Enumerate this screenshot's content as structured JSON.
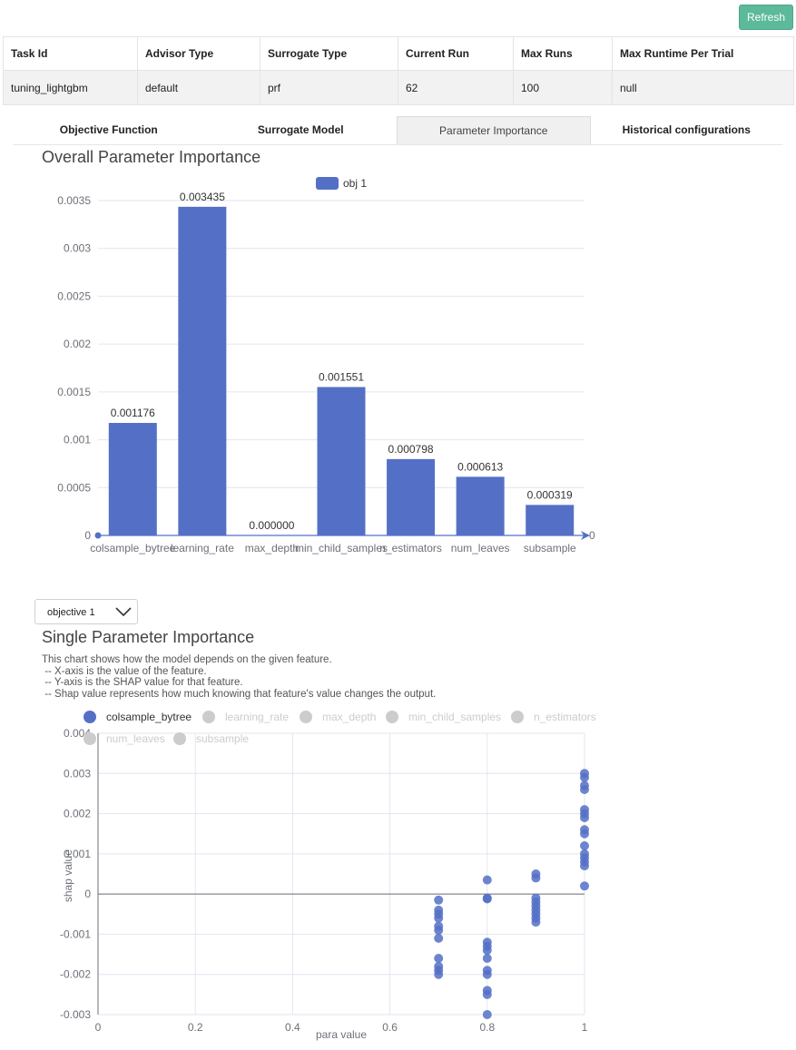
{
  "refresh_label": "Refresh",
  "info_table": {
    "headers": [
      "Task Id",
      "Advisor Type",
      "Surrogate Type",
      "Current Run",
      "Max Runs",
      "Max Runtime Per Trial"
    ],
    "row": [
      "tuning_lightgbm",
      "default",
      "prf",
      "62",
      "100",
      "null"
    ]
  },
  "tabs": [
    {
      "label": "Objective Function",
      "active": false
    },
    {
      "label": "Surrogate Model",
      "active": false
    },
    {
      "label": "Parameter Importance",
      "active": true
    },
    {
      "label": "Historical configurations",
      "active": false
    }
  ],
  "overall": {
    "title": "Overall Parameter Importance"
  },
  "objective_select": {
    "value": "objective 1"
  },
  "single": {
    "title": "Single Parameter Importance",
    "description": [
      "This chart shows how the model depends on the given feature.",
      " -- X-axis is the value of the feature.",
      " -- Y-axis is the SHAP value for that feature.",
      " -- Shap value represents how much knowing that feature's value changes the output."
    ]
  },
  "colors": {
    "series": "#5470c6",
    "inactive_legend": "#cccccc",
    "refresh": "#5cb99a"
  },
  "chart_data": [
    {
      "type": "bar",
      "title": "Overall Parameter Importance",
      "categories": [
        "colsample_bytree",
        "learning_rate",
        "max_depth",
        "min_child_samples",
        "n_estimators",
        "num_leaves",
        "subsample"
      ],
      "series": [
        {
          "name": "obj 1",
          "values": [
            0.001176,
            0.003435,
            0.0,
            0.001551,
            0.000798,
            0.000613,
            0.000319
          ]
        }
      ],
      "data_labels": [
        "0.001176",
        "0.003435",
        "0.000000",
        "0.001551",
        "0.000798",
        "0.000613",
        "0.000319"
      ],
      "y_ticks": [
        "0",
        "0.0005",
        "0.001",
        "0.0015",
        "0.002",
        "0.0025",
        "0.003",
        "0.0035"
      ],
      "y_right_label": "0",
      "ylim": [
        0,
        0.0035
      ],
      "legend": "top-center",
      "grid": true
    },
    {
      "type": "scatter",
      "title": "Single Parameter Importance",
      "xlabel": "para value",
      "ylabel": "shap value",
      "x_ticks": [
        "0",
        "0.2",
        "0.4",
        "0.6",
        "0.8",
        "1"
      ],
      "y_ticks": [
        "-0.003",
        "-0.002",
        "-0.001",
        "0",
        "0.001",
        "0.002",
        "0.003",
        "0.004"
      ],
      "xlim": [
        0,
        1
      ],
      "ylim": [
        -0.003,
        0.004
      ],
      "legend_items": [
        {
          "name": "colsample_bytree",
          "active": true
        },
        {
          "name": "learning_rate",
          "active": false
        },
        {
          "name": "max_depth",
          "active": false
        },
        {
          "name": "min_child_samples",
          "active": false
        },
        {
          "name": "n_estimators",
          "active": false
        },
        {
          "name": "num_leaves",
          "active": false
        },
        {
          "name": "subsample",
          "active": false
        }
      ],
      "grid": true,
      "series": [
        {
          "name": "colsample_bytree",
          "points": [
            [
              0.7,
              -0.00015
            ],
            [
              0.7,
              -0.0004
            ],
            [
              0.7,
              -0.0005
            ],
            [
              0.7,
              -0.0006
            ],
            [
              0.7,
              -0.0008
            ],
            [
              0.7,
              -0.0009
            ],
            [
              0.7,
              -0.0011
            ],
            [
              0.7,
              -0.0016
            ],
            [
              0.7,
              -0.0018
            ],
            [
              0.7,
              -0.0019
            ],
            [
              0.7,
              -0.002
            ],
            [
              0.8,
              0.00035
            ],
            [
              0.8,
              -0.0001
            ],
            [
              0.8,
              -0.00012
            ],
            [
              0.8,
              -0.0012
            ],
            [
              0.8,
              -0.0013
            ],
            [
              0.8,
              -0.0014
            ],
            [
              0.8,
              -0.0016
            ],
            [
              0.8,
              -0.0019
            ],
            [
              0.8,
              -0.002
            ],
            [
              0.8,
              -0.0024
            ],
            [
              0.8,
              -0.0025
            ],
            [
              0.8,
              -0.003
            ],
            [
              0.9,
              0.0005
            ],
            [
              0.9,
              0.0004
            ],
            [
              0.9,
              -0.0001
            ],
            [
              0.9,
              -0.0002
            ],
            [
              0.9,
              -0.0003
            ],
            [
              0.9,
              -0.0004
            ],
            [
              0.9,
              -0.0005
            ],
            [
              0.9,
              -0.0006
            ],
            [
              0.9,
              -0.0007
            ],
            [
              1.0,
              0.003
            ],
            [
              1.0,
              0.0029
            ],
            [
              1.0,
              0.0027
            ],
            [
              1.0,
              0.0026
            ],
            [
              1.0,
              0.0021
            ],
            [
              1.0,
              0.002
            ],
            [
              1.0,
              0.0019
            ],
            [
              1.0,
              0.0016
            ],
            [
              1.0,
              0.0015
            ],
            [
              1.0,
              0.0012
            ],
            [
              1.0,
              0.001
            ],
            [
              1.0,
              0.0009
            ],
            [
              1.0,
              0.0008
            ],
            [
              1.0,
              0.0007
            ],
            [
              1.0,
              0.0002
            ]
          ]
        }
      ]
    }
  ]
}
